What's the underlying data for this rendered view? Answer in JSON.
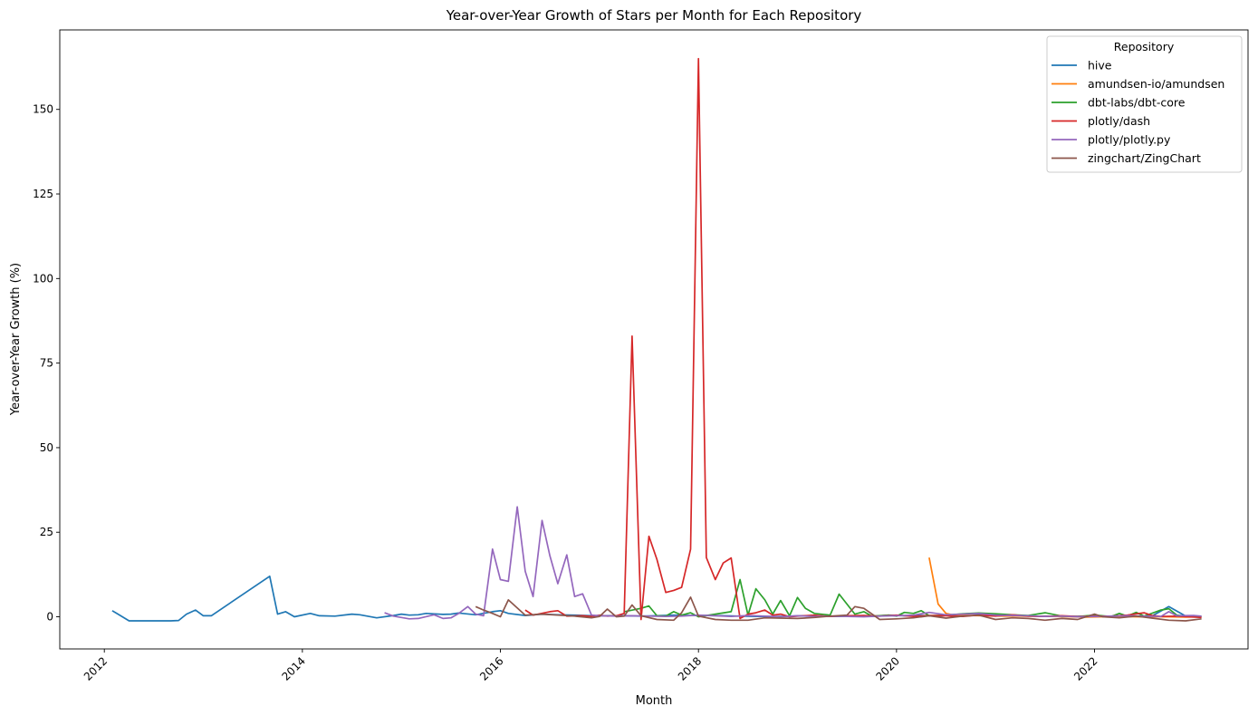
{
  "chart_data": {
    "type": "line",
    "title": "Year-over-Year Growth of Stars per Month for Each Repository",
    "xlabel": "Month",
    "ylabel": "Year-over-Year Growth (%)",
    "xlim": [
      2011.55,
      2023.55
    ],
    "ylim": [
      -9.5,
      173.5
    ],
    "xticks": [
      2012,
      2014,
      2016,
      2018,
      2020,
      2022
    ],
    "xtick_labels": [
      "2012",
      "2014",
      "2016",
      "2018",
      "2020",
      "2022"
    ],
    "yticks": [
      0,
      25,
      50,
      75,
      100,
      125,
      150
    ],
    "ytick_labels": [
      "0",
      "25",
      "50",
      "75",
      "100",
      "125",
      "150"
    ],
    "legend": {
      "title": "Repository",
      "placement": "top-right"
    },
    "grid": false,
    "series": [
      {
        "name": "hive",
        "color": "#1f77b4",
        "x": [
          2012.08,
          2012.25,
          2012.42,
          2012.58,
          2012.67,
          2012.75,
          2012.83,
          2012.92,
          2013.0,
          2013.08,
          2013.67,
          2013.75,
          2013.83,
          2013.92,
          2014.08,
          2014.17,
          2014.33,
          2014.5,
          2014.58,
          2014.75,
          2014.92,
          2015.0,
          2015.08,
          2015.17,
          2015.25,
          2015.42,
          2015.5,
          2015.58,
          2015.75,
          2015.92,
          2016.0,
          2016.08,
          2016.25,
          2016.42,
          2016.58,
          2016.75,
          2016.92,
          2017.08,
          2017.25,
          2017.42,
          2017.58,
          2017.75,
          2017.92,
          2018.08,
          2018.25,
          2018.42,
          2018.58,
          2018.75,
          2018.92,
          2019.08,
          2019.25,
          2019.42,
          2019.58,
          2019.75,
          2019.92,
          2020.08,
          2020.25,
          2020.42,
          2020.58,
          2020.75,
          2020.92,
          2021.08,
          2021.25,
          2021.42,
          2021.58,
          2021.75,
          2021.92,
          2022.08,
          2022.25,
          2022.42,
          2022.58,
          2022.75,
          2022.92,
          2023.08
        ],
        "y": [
          1.8,
          -1.2,
          -1.2,
          -1.2,
          -1.2,
          -1.1,
          0.8,
          2.0,
          0.3,
          0.3,
          12.0,
          0.8,
          1.5,
          0.0,
          1.0,
          0.3,
          0.2,
          0.8,
          0.6,
          -0.3,
          0.4,
          0.8,
          0.5,
          0.6,
          1.0,
          0.7,
          0.8,
          1.1,
          0.6,
          1.5,
          1.8,
          1.0,
          0.4,
          0.8,
          0.6,
          0.5,
          0.3,
          0.3,
          0.3,
          0.2,
          0.3,
          0.5,
          0.4,
          0.4,
          0.3,
          0.2,
          0.1,
          0.1,
          0.2,
          0.3,
          0.2,
          0.1,
          0.2,
          0.1,
          0.5,
          0.3,
          0.4,
          0.2,
          0.6,
          1.0,
          0.8,
          0.4,
          0.3,
          0.2,
          0.2,
          0.1,
          0.2,
          0.1,
          0.3,
          0.2,
          0.2,
          3.0,
          0.2,
          0.1
        ]
      },
      {
        "name": "amundsen-io/amundsen",
        "color": "#ff7f0e",
        "x": [
          2020.33,
          2020.42,
          2020.5,
          2020.58,
          2020.75,
          2020.92,
          2021.08,
          2021.25,
          2021.42,
          2021.58,
          2021.75,
          2021.92,
          2022.08,
          2022.25,
          2022.42,
          2022.58,
          2022.75,
          2022.92,
          2023.08
        ],
        "y": [
          17.5,
          3.8,
          1.0,
          0.5,
          0.4,
          0.3,
          0.2,
          0.2,
          0.1,
          0.1,
          0.0,
          -0.1,
          0.0,
          0.1,
          0.0,
          0.0,
          0.0,
          -0.1,
          0.0
        ]
      },
      {
        "name": "dbt-labs/dbt-core",
        "color": "#2ca02c",
        "x": [
          2017.25,
          2017.42,
          2017.5,
          2017.58,
          2017.67,
          2017.75,
          2017.83,
          2017.92,
          2018.0,
          2018.17,
          2018.33,
          2018.42,
          2018.5,
          2018.58,
          2018.67,
          2018.75,
          2018.83,
          2018.92,
          2019.0,
          2019.08,
          2019.17,
          2019.33,
          2019.42,
          2019.58,
          2019.67,
          2019.75,
          2019.92,
          2020.0,
          2020.08,
          2020.17,
          2020.25,
          2020.33,
          2020.5,
          2020.67,
          2020.83,
          2021.0,
          2021.17,
          2021.33,
          2021.5,
          2021.67,
          2021.83,
          2022.0,
          2022.17,
          2022.25,
          2022.33,
          2022.42,
          2022.5,
          2022.67,
          2022.75,
          2022.83,
          2022.92,
          2023.08
        ],
        "y": [
          1.5,
          2.5,
          3.2,
          0.3,
          0.2,
          1.5,
          0.5,
          1.2,
          0.0,
          0.8,
          1.5,
          11.0,
          0.5,
          8.3,
          5.0,
          0.8,
          4.8,
          0.3,
          5.7,
          2.5,
          1.0,
          0.5,
          6.7,
          0.8,
          1.5,
          0.2,
          0.5,
          0.2,
          1.3,
          1.0,
          1.8,
          0.3,
          0.5,
          0.9,
          1.1,
          0.9,
          0.6,
          0.4,
          1.2,
          0.2,
          0.1,
          0.5,
          0.1,
          1.0,
          0.2,
          1.3,
          0.2,
          2.0,
          2.4,
          0.5,
          0.2,
          0.0
        ]
      },
      {
        "name": "plotly/dash",
        "color": "#d62728",
        "x": [
          2016.25,
          2016.33,
          2016.5,
          2016.58,
          2016.67,
          2016.83,
          2016.92,
          2017.0,
          2017.08,
          2017.17,
          2017.25,
          2017.33,
          2017.42,
          2017.5,
          2017.58,
          2017.67,
          2017.75,
          2017.83,
          2017.92,
          2018.0,
          2018.08,
          2018.17,
          2018.25,
          2018.33,
          2018.42,
          2018.5,
          2018.58,
          2018.67,
          2018.75,
          2018.83,
          2018.92,
          2019.0,
          2019.17,
          2019.33,
          2019.5,
          2019.67,
          2019.83,
          2020.0,
          2020.17,
          2020.33,
          2020.5,
          2020.67,
          2020.83,
          2021.0,
          2021.17,
          2021.33,
          2021.5,
          2021.67,
          2021.83,
          2022.0,
          2022.17,
          2022.33,
          2022.5,
          2022.58,
          2022.67,
          2022.83,
          2023.08
        ],
        "y": [
          2.0,
          0.5,
          1.5,
          1.8,
          0.2,
          0.3,
          0.1,
          0.5,
          0.2,
          0.3,
          1.0,
          83.0,
          -0.8,
          23.8,
          17.0,
          7.2,
          7.8,
          8.7,
          20.0,
          165.0,
          17.5,
          11.0,
          15.9,
          17.4,
          -0.5,
          0.8,
          1.2,
          2.0,
          0.5,
          0.8,
          0.0,
          0.2,
          0.5,
          0.1,
          0.3,
          0.4,
          0.2,
          0.5,
          0.1,
          0.4,
          0.3,
          0.1,
          0.5,
          0.2,
          0.6,
          0.2,
          0.1,
          0.3,
          0.1,
          0.2,
          0.2,
          0.5,
          1.2,
          0.4,
          0.1,
          0.2,
          -0.2
        ]
      },
      {
        "name": "plotly/plotly.py",
        "color": "#9467bd",
        "x": [
          2014.83,
          2014.92,
          2015.08,
          2015.17,
          2015.33,
          2015.42,
          2015.5,
          2015.58,
          2015.67,
          2015.75,
          2015.83,
          2015.92,
          2016.0,
          2016.08,
          2016.17,
          2016.25,
          2016.33,
          2016.42,
          2016.5,
          2016.58,
          2016.67,
          2016.75,
          2016.83,
          2016.92,
          2017.0,
          2017.17,
          2017.33,
          2017.5,
          2017.67,
          2017.83,
          2018.0,
          2018.17,
          2018.33,
          2018.5,
          2018.67,
          2018.83,
          2019.0,
          2019.17,
          2019.33,
          2019.5,
          2019.67,
          2019.83,
          2020.0,
          2020.17,
          2020.33,
          2020.5,
          2020.67,
          2020.83,
          2021.0,
          2021.17,
          2021.33,
          2021.5,
          2021.67,
          2021.83,
          2022.0,
          2022.17,
          2022.33,
          2022.5,
          2022.67,
          2022.75,
          2022.83,
          2023.0,
          2023.08
        ],
        "y": [
          1.2,
          0.2,
          -0.6,
          -0.5,
          0.6,
          -0.5,
          -0.3,
          1.0,
          3.0,
          0.8,
          0.3,
          20.0,
          11.0,
          10.5,
          32.5,
          13.5,
          6.0,
          28.5,
          18.0,
          9.8,
          18.3,
          6.0,
          6.8,
          0.5,
          0.3,
          0.2,
          0.3,
          0.2,
          0.1,
          0.2,
          0.5,
          0.3,
          0.1,
          0.4,
          0.2,
          0.0,
          0.3,
          0.1,
          0.2,
          0.1,
          0.0,
          0.2,
          0.3,
          0.5,
          1.3,
          0.6,
          0.8,
          1.0,
          0.5,
          0.4,
          0.3,
          0.1,
          0.2,
          0.0,
          0.1,
          0.2,
          0.3,
          0.2,
          0.1,
          1.5,
          0.3,
          0.4,
          0.2
        ]
      },
      {
        "name": "zingchart/ZingChart",
        "color": "#8c564b",
        "x": [
          2015.75,
          2015.83,
          2015.92,
          2016.0,
          2016.08,
          2016.25,
          2016.42,
          2016.58,
          2016.75,
          2016.92,
          2017.0,
          2017.08,
          2017.17,
          2017.25,
          2017.33,
          2017.42,
          2017.58,
          2017.75,
          2017.83,
          2017.92,
          2018.0,
          2018.17,
          2018.33,
          2018.5,
          2018.67,
          2018.83,
          2019.0,
          2019.17,
          2019.33,
          2019.5,
          2019.58,
          2019.67,
          2019.83,
          2020.0,
          2020.17,
          2020.33,
          2020.5,
          2020.67,
          2020.83,
          2021.0,
          2021.17,
          2021.33,
          2021.5,
          2021.67,
          2021.83,
          2022.0,
          2022.08,
          2022.25,
          2022.42,
          2022.58,
          2022.75,
          2022.92,
          2023.08
        ],
        "y": [
          3.0,
          2.0,
          1.0,
          0.0,
          5.0,
          0.5,
          0.8,
          0.5,
          0.2,
          -0.3,
          0.1,
          2.3,
          0.0,
          0.2,
          3.5,
          0.3,
          -0.8,
          -1.0,
          1.2,
          5.8,
          0.2,
          -0.8,
          -1.0,
          -1.0,
          -0.3,
          -0.4,
          -0.5,
          -0.2,
          0.2,
          0.5,
          3.0,
          2.5,
          -0.8,
          -0.6,
          -0.3,
          0.3,
          -0.4,
          0.2,
          0.5,
          -0.8,
          -0.3,
          -0.5,
          -1.0,
          -0.5,
          -0.8,
          0.8,
          0.0,
          -0.3,
          0.2,
          -0.4,
          -1.0,
          -1.2,
          -0.6
        ]
      }
    ]
  }
}
